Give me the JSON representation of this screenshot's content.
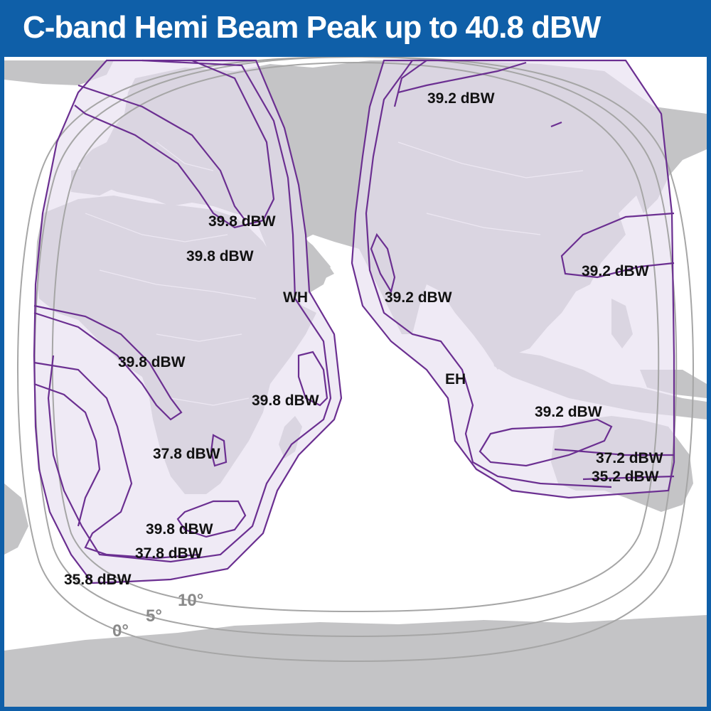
{
  "title": "C-band Hemi Beam Peak up to 40.8 dBW",
  "colors": {
    "frame": "#0f5fa8",
    "land": "#c4c4c6",
    "ocean": "#ffffff",
    "coverage_fill": "#e6dff0",
    "contour": "#6b2f91",
    "elevation_ring": "#a6a6a6"
  },
  "beams": [
    {
      "id": "west",
      "label": "WH"
    },
    {
      "id": "east",
      "label": "EH"
    }
  ],
  "contour_labels": {
    "w1": "39.8 dBW",
    "w2": "39.8 dBW",
    "w3": "39.8 dBW",
    "w4": "39.8 dBW",
    "w5": "37.8 dBW",
    "w6": "39.8 dBW",
    "w7": "37.8 dBW",
    "w8": "35.8 dBW",
    "e1": "39.2 dBW",
    "e2": "39.2 dBW",
    "e3": "39.2 dBW",
    "e4": "39.2 dBW",
    "e5": "37.2 dBW",
    "e6": "35.2 dBW"
  },
  "elevation_labels": {
    "ring0": "0°",
    "ring5": "5°",
    "ring10": "10°"
  }
}
